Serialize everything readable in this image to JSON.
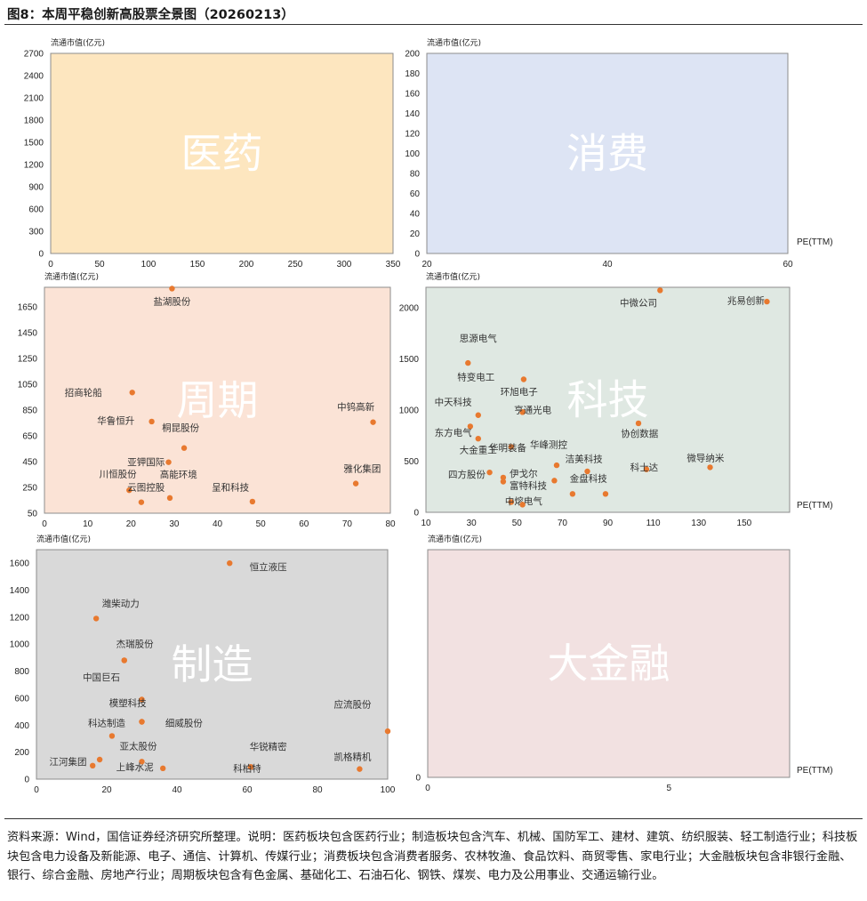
{
  "page": {
    "title": "图8：本周平稳创新高股票全景图（20260213）",
    "source_note": "资料来源：Wind，国信证券经济研究所整理。说明：医药板块包含医药行业；制造板块包含汽车、机械、国防军工、建材、建筑、纺织服装、轻工制造行业；科技板块包含电力设备及新能源、电子、通信、计算机、传媒行业；消费板块包含消费者服务、农林牧渔、食品饮料、商贸零售、家电行业；大金融板块包含非银行金融、银行、综合金融、房地产行业；周期板块包含有色金属、基础化工、石油石化、钢铁、煤炭、电力及公用事业、交通运输行业。",
    "colors": {
      "marker": "#e8792f"
    }
  },
  "chart_data": [
    {
      "id": "pharma",
      "type": "scatter",
      "title": "医药",
      "ylabel": "流通市值(亿元)",
      "xlabel": "",
      "xlim": [
        0,
        350
      ],
      "ylim": [
        0,
        2700
      ],
      "xticks": [
        0,
        50,
        100,
        150,
        200,
        250,
        300,
        350
      ],
      "yticks": [
        0,
        300,
        600,
        900,
        1200,
        1500,
        1800,
        2100,
        2400,
        2700
      ],
      "bg": "#fde6bf",
      "points": []
    },
    {
      "id": "consumer",
      "type": "scatter",
      "title": "消费",
      "ylabel": "流通市值(亿元)",
      "xlabel": "PE(TTM)",
      "xlim": [
        20,
        60
      ],
      "ylim": [
        0,
        200
      ],
      "xticks": [
        20,
        40,
        60
      ],
      "yticks": [
        0,
        20,
        40,
        60,
        80,
        100,
        120,
        140,
        160,
        180,
        200
      ],
      "bg": "#dde4f4",
      "points": []
    },
    {
      "id": "cyclical",
      "type": "scatter",
      "title": "周期",
      "ylabel": "流通市值(亿元)",
      "xlabel": "",
      "xlim": [
        0,
        80
      ],
      "ylim": [
        50,
        1800
      ],
      "xticks": [
        0,
        10,
        20,
        30,
        40,
        50,
        60,
        70,
        80
      ],
      "yticks": [
        50,
        250,
        450,
        650,
        850,
        1050,
        1250,
        1450,
        1650
      ],
      "bg": "#fbe3d6",
      "points": [
        {
          "x": 29.5,
          "y": 1790,
          "label": "盐湖股份",
          "lx": 29.5,
          "ly": 1690,
          "anchor": "middle"
        },
        {
          "x": 20.3,
          "y": 985,
          "label": "招商轮船",
          "lx": 9,
          "ly": 985,
          "anchor": "middle"
        },
        {
          "x": 24.8,
          "y": 760,
          "label": "华鲁恒升",
          "lx": 16.5,
          "ly": 765,
          "anchor": "middle"
        },
        {
          "x": 32.3,
          "y": 555,
          "label": "桐昆股份",
          "lx": 31.5,
          "ly": 710,
          "anchor": "middle"
        },
        {
          "x": 28.7,
          "y": 445,
          "label": "亚钾国际",
          "lx": 23.5,
          "ly": 445,
          "anchor": "middle"
        },
        {
          "x": 29,
          "y": 168,
          "label": "高能环境",
          "lx": 31,
          "ly": 350,
          "anchor": "middle"
        },
        {
          "x": 19.6,
          "y": 228,
          "label": "川恒股份",
          "lx": 17,
          "ly": 352,
          "anchor": "middle"
        },
        {
          "x": 22.4,
          "y": 135,
          "label": "云图控股",
          "lx": 23.5,
          "ly": 250,
          "anchor": "middle"
        },
        {
          "x": 48.1,
          "y": 140,
          "label": "呈和科技",
          "lx": 43,
          "ly": 250,
          "anchor": "middle"
        },
        {
          "x": 76,
          "y": 755,
          "label": "中钨高新",
          "lx": 72,
          "ly": 875,
          "anchor": "middle"
        },
        {
          "x": 72,
          "y": 280,
          "label": "雅化集团",
          "lx": 73.5,
          "ly": 395,
          "anchor": "middle"
        }
      ]
    },
    {
      "id": "tech",
      "type": "scatter",
      "title": "科技",
      "ylabel": "流通市值(亿元)",
      "xlabel": "PE(TTM)",
      "xlim": [
        10,
        170
      ],
      "ylim": [
        0,
        2200
      ],
      "xticks": [
        10,
        30,
        50,
        70,
        90,
        110,
        130,
        150
      ],
      "yticks": [
        0,
        500,
        1000,
        1500,
        2000
      ],
      "bg": "#dfe8e2",
      "points": [
        {
          "x": 113,
          "y": 2170,
          "label": "中微公司",
          "lx": 103.5,
          "ly": 2050,
          "anchor": "middle"
        },
        {
          "x": 160,
          "y": 2060,
          "label": "兆易创新",
          "lx": 159,
          "ly": 2070,
          "anchor": "end"
        },
        {
          "x": 28.5,
          "y": 1460,
          "label": "思源电气",
          "lx": 33,
          "ly": 1700,
          "anchor": "middle"
        },
        {
          "x": 53,
          "y": 1300,
          "label": "特变电工",
          "lx": 32,
          "ly": 1320,
          "anchor": "middle"
        },
        {
          "x": 52.5,
          "y": 980,
          "label": "环旭电子",
          "lx": 51,
          "ly": 1180,
          "anchor": "middle"
        },
        {
          "x": 33,
          "y": 950,
          "label": "中天科技",
          "lx": 22,
          "ly": 1080,
          "anchor": "middle"
        },
        {
          "x": 52.5,
          "y": 980,
          "label": "亨通光电",
          "lx": 57,
          "ly": 1000,
          "anchor": "middle"
        },
        {
          "x": 29.5,
          "y": 840,
          "label": "东方电气",
          "lx": 22,
          "ly": 780,
          "anchor": "middle"
        },
        {
          "x": 33,
          "y": 720,
          "label": "大金重工",
          "lx": 33,
          "ly": 610,
          "anchor": "middle"
        },
        {
          "x": 47.5,
          "y": 640,
          "label": "华明装备",
          "lx": 46,
          "ly": 630,
          "anchor": "middle"
        },
        {
          "x": 67.5,
          "y": 460,
          "label": "华峰测控",
          "lx": 64,
          "ly": 660,
          "anchor": "middle"
        },
        {
          "x": 103.5,
          "y": 870,
          "label": "协创数据",
          "lx": 104,
          "ly": 770,
          "anchor": "middle"
        },
        {
          "x": 135,
          "y": 440,
          "label": "微导纳米",
          "lx": 133,
          "ly": 530,
          "anchor": "middle"
        },
        {
          "x": 81,
          "y": 400,
          "label": "洁美科技",
          "lx": 79.5,
          "ly": 520,
          "anchor": "middle"
        },
        {
          "x": 107,
          "y": 420,
          "label": "科士达",
          "lx": 106,
          "ly": 440,
          "anchor": "middle"
        },
        {
          "x": 38,
          "y": 390,
          "label": "四方股份",
          "lx": 28,
          "ly": 370,
          "anchor": "middle"
        },
        {
          "x": 44,
          "y": 340,
          "label": "伊戈尔",
          "lx": 53,
          "ly": 380,
          "anchor": "middle"
        },
        {
          "x": 44,
          "y": 300,
          "label": "富特科技",
          "lx": 55,
          "ly": 260,
          "anchor": "middle"
        },
        {
          "x": 66.5,
          "y": 310,
          "label": "金盘科技",
          "lx": 81.5,
          "ly": 330,
          "anchor": "middle"
        },
        {
          "x": 89,
          "y": 180,
          "label": "",
          "lx": 89,
          "ly": 180,
          "anchor": "middle"
        },
        {
          "x": 74.5,
          "y": 180,
          "label": "",
          "lx": 74.5,
          "ly": 180,
          "anchor": "middle"
        },
        {
          "x": 47.5,
          "y": 100,
          "label": "中熔电气",
          "lx": 53,
          "ly": 110,
          "anchor": "middle"
        },
        {
          "x": 52.5,
          "y": 75,
          "label": "",
          "lx": 52.5,
          "ly": 75,
          "anchor": "middle"
        }
      ]
    },
    {
      "id": "manufacturing",
      "type": "scatter",
      "title": "制造",
      "ylabel": "流通市值(亿元)",
      "xlabel": "",
      "xlim": [
        0,
        100
      ],
      "ylim": [
        0,
        1700
      ],
      "xticks": [
        0,
        20,
        40,
        60,
        80,
        100
      ],
      "yticks": [
        0,
        200,
        400,
        600,
        800,
        1000,
        1200,
        1400,
        1600
      ],
      "bg": "#d9d9d9",
      "points": [
        {
          "x": 55,
          "y": 1600,
          "label": "恒立液压",
          "lx": 66,
          "ly": 1570,
          "anchor": "middle"
        },
        {
          "x": 17,
          "y": 1190,
          "label": "潍柴动力",
          "lx": 24,
          "ly": 1300,
          "anchor": "middle"
        },
        {
          "x": 25,
          "y": 880,
          "label": "杰瑞股份",
          "lx": 28,
          "ly": 1000,
          "anchor": "middle"
        },
        {
          "x": 25,
          "y": 880,
          "label": "中国巨石",
          "lx": 18.5,
          "ly": 755,
          "anchor": "middle"
        },
        {
          "x": 30,
          "y": 590,
          "label": "模塑科技",
          "lx": 26,
          "ly": 565,
          "anchor": "middle"
        },
        {
          "x": 30,
          "y": 425,
          "label": "科达制造",
          "lx": 20,
          "ly": 415,
          "anchor": "middle"
        },
        {
          "x": 30,
          "y": 425,
          "label": "细威股份",
          "lx": 42,
          "ly": 415,
          "anchor": "middle"
        },
        {
          "x": 21.5,
          "y": 320,
          "label": "亚太股份",
          "lx": 29,
          "ly": 245,
          "anchor": "middle"
        },
        {
          "x": 18,
          "y": 145,
          "label": "江河集团",
          "lx": 9,
          "ly": 130,
          "anchor": "middle"
        },
        {
          "x": 16,
          "y": 100,
          "label": "",
          "lx": 16,
          "ly": 100,
          "anchor": "middle"
        },
        {
          "x": 30,
          "y": 130,
          "label": "上峰水泥",
          "lx": 28,
          "ly": 90,
          "anchor": "middle"
        },
        {
          "x": 36,
          "y": 80,
          "label": "",
          "lx": 36,
          "ly": 80,
          "anchor": "middle"
        },
        {
          "x": 61,
          "y": 90,
          "label": "华锐精密",
          "lx": 66,
          "ly": 240,
          "anchor": "middle"
        },
        {
          "x": 61,
          "y": 90,
          "label": "科柏特",
          "lx": 60,
          "ly": 80,
          "anchor": "middle"
        },
        {
          "x": 100,
          "y": 355,
          "label": "应流股份",
          "lx": 90,
          "ly": 555,
          "anchor": "middle"
        },
        {
          "x": 92,
          "y": 75,
          "label": "凯格精机",
          "lx": 90,
          "ly": 165,
          "anchor": "middle"
        }
      ]
    },
    {
      "id": "finance",
      "type": "scatter",
      "title": "大金融",
      "ylabel": "流通市值(亿元)",
      "xlabel": "PE(TTM)",
      "xlim": [
        0,
        7.5
      ],
      "ylim": [
        0,
        250
      ],
      "xticks": [
        0,
        5
      ],
      "yticks": [
        0
      ],
      "bg": "#f2e1e1",
      "points": []
    }
  ]
}
